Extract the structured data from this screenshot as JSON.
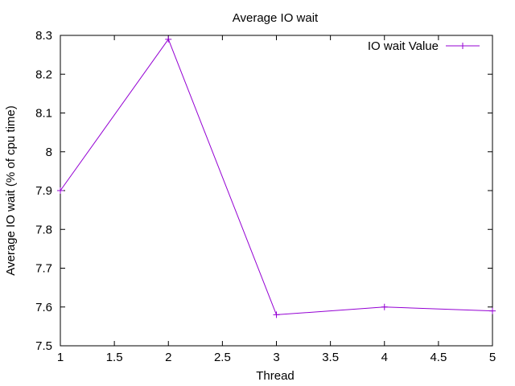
{
  "chart_data": {
    "type": "line",
    "title": "Average IO wait",
    "xlabel": "Thread",
    "ylabel": "Average IO wait (% of cpu time)",
    "xlim": [
      1,
      5
    ],
    "ylim": [
      7.5,
      8.3
    ],
    "x_ticks": [
      "1",
      "1.5",
      "2",
      "2.5",
      "3",
      "3.5",
      "4",
      "4.5",
      "5"
    ],
    "y_ticks": [
      "7.5",
      "7.6",
      "7.7",
      "7.8",
      "7.9",
      "8",
      "8.1",
      "8.2",
      "8.3"
    ],
    "grid": false,
    "legend_position": "top-right",
    "series": [
      {
        "name": "IO wait Value",
        "color": "#9400d3",
        "marker": "plus",
        "x": [
          1,
          2,
          3,
          4,
          5
        ],
        "y": [
          7.9,
          8.29,
          7.58,
          7.6,
          7.59
        ]
      }
    ]
  }
}
